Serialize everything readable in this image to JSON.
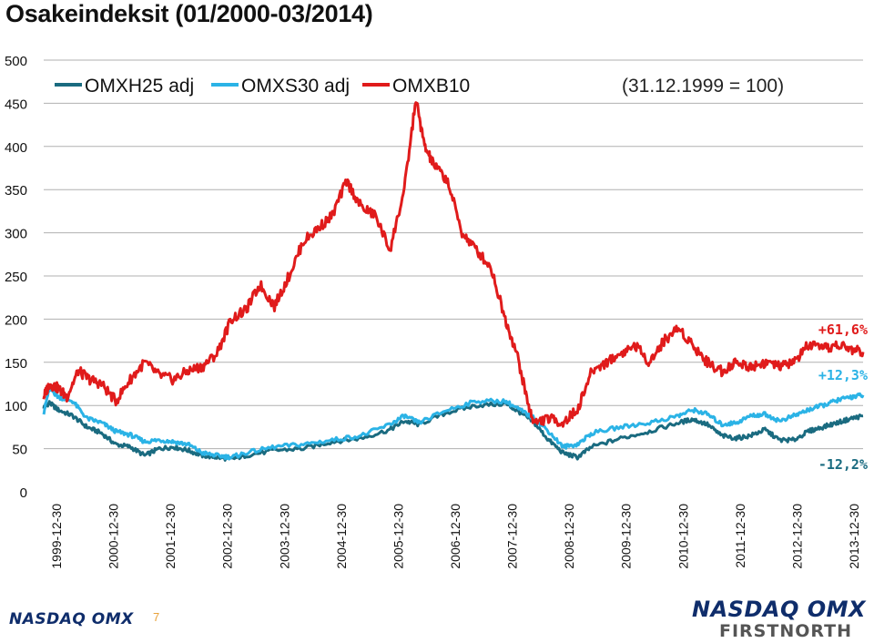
{
  "title": "Osakeindeksit (01/2000-03/2014)",
  "page_number": "7",
  "logos": {
    "left": "NASDAQ OMX",
    "right_top": "NASDAQ OMX",
    "right_bottom": "FIRSTNORTH"
  },
  "colors": {
    "omxh25": "#1a6b80",
    "omxs30": "#2bb3e6",
    "omxb10": "#e01b1b",
    "grid": "#b0b0b0",
    "logo_navy": "#0f2d6b"
  },
  "chart_data": {
    "type": "line",
    "title": "Osakeindeksit (01/2000-03/2014)",
    "subtitle": "(31.12.1999 = 100)",
    "xlabel": "",
    "ylabel": "",
    "ylim": [
      0,
      500
    ],
    "yticks": [
      "0",
      "50",
      "100",
      "150",
      "200",
      "250",
      "300",
      "350",
      "400",
      "450",
      "500"
    ],
    "xticks": [
      "1999-12-30",
      "2000-12-30",
      "2001-12-30",
      "2002-12-30",
      "2003-12-30",
      "2004-12-30",
      "2005-12-30",
      "2006-12-30",
      "2007-12-30",
      "2008-12-30",
      "2009-12-30",
      "2010-12-30",
      "2011-12-30",
      "2012-12-30",
      "2013-12-30"
    ],
    "grid": true,
    "legend_position": "top-left",
    "series": [
      {
        "name": "OMXH25 adj",
        "color": "#1a6b80",
        "x": [
          2000.0,
          2000.1,
          2000.25,
          2000.5,
          2000.75,
          2001.0,
          2001.25,
          2001.5,
          2001.75,
          2002.0,
          2002.25,
          2002.5,
          2002.75,
          2003.0,
          2003.25,
          2003.5,
          2004.0,
          2004.5,
          2005.0,
          2005.5,
          2006.0,
          2006.25,
          2006.5,
          2007.0,
          2007.5,
          2008.0,
          2008.25,
          2008.5,
          2008.75,
          2009.0,
          2009.25,
          2009.5,
          2010.0,
          2010.5,
          2011.0,
          2011.25,
          2011.5,
          2011.75,
          2012.0,
          2012.25,
          2012.5,
          2012.75,
          2013.0,
          2013.25,
          2013.5,
          2013.75,
          2014.0,
          2014.2
        ],
        "y": [
          98,
          103,
          95,
          88,
          75,
          68,
          55,
          52,
          42,
          50,
          52,
          48,
          42,
          40,
          38,
          42,
          48,
          50,
          58,
          62,
          72,
          82,
          78,
          92,
          100,
          102,
          92,
          80,
          60,
          45,
          40,
          52,
          62,
          70,
          80,
          84,
          78,
          65,
          62,
          65,
          72,
          60,
          60,
          70,
          75,
          80,
          85,
          88
        ]
      },
      {
        "name": "OMXS30 adj",
        "color": "#2bb3e6",
        "x": [
          2000.0,
          2000.1,
          2000.25,
          2000.5,
          2000.75,
          2001.0,
          2001.25,
          2001.5,
          2001.75,
          2002.0,
          2002.25,
          2002.5,
          2002.75,
          2003.0,
          2003.25,
          2003.5,
          2004.0,
          2004.5,
          2005.0,
          2005.5,
          2006.0,
          2006.25,
          2006.5,
          2007.0,
          2007.5,
          2008.0,
          2008.25,
          2008.5,
          2008.75,
          2009.0,
          2009.25,
          2009.5,
          2010.0,
          2010.5,
          2011.0,
          2011.25,
          2011.5,
          2011.75,
          2012.0,
          2012.25,
          2012.5,
          2012.75,
          2013.0,
          2013.25,
          2013.5,
          2013.75,
          2014.0,
          2014.2
        ],
        "y": [
          92,
          120,
          110,
          105,
          85,
          80,
          70,
          66,
          58,
          60,
          58,
          55,
          45,
          42,
          40,
          45,
          52,
          55,
          60,
          65,
          78,
          88,
          80,
          95,
          105,
          105,
          95,
          85,
          70,
          52,
          55,
          68,
          75,
          80,
          88,
          95,
          90,
          78,
          80,
          88,
          90,
          82,
          88,
          95,
          100,
          106,
          110,
          112
        ]
      },
      {
        "name": "OMXB10",
        "color": "#e01b1b",
        "x": [
          2000.0,
          2000.1,
          2000.25,
          2000.4,
          2000.6,
          2000.8,
          2001.0,
          2001.25,
          2001.5,
          2001.75,
          2002.0,
          2002.25,
          2002.5,
          2002.75,
          2003.0,
          2003.25,
          2003.5,
          2003.75,
          2004.0,
          2004.25,
          2004.5,
          2004.75,
          2005.0,
          2005.25,
          2005.5,
          2005.75,
          2006.0,
          2006.25,
          2006.45,
          2006.6,
          2006.75,
          2007.0,
          2007.25,
          2007.5,
          2007.75,
          2008.0,
          2008.2,
          2008.4,
          2008.5,
          2008.75,
          2009.0,
          2009.25,
          2009.5,
          2009.75,
          2010.0,
          2010.25,
          2010.5,
          2010.75,
          2011.0,
          2011.25,
          2011.5,
          2011.75,
          2012.0,
          2012.25,
          2012.5,
          2012.75,
          2013.0,
          2013.25,
          2013.5,
          2013.75,
          2014.0,
          2014.2
        ],
        "y": [
          110,
          125,
          120,
          110,
          140,
          130,
          125,
          105,
          130,
          150,
          135,
          130,
          140,
          145,
          160,
          200,
          210,
          240,
          215,
          250,
          290,
          305,
          320,
          360,
          330,
          320,
          280,
          350,
          455,
          400,
          380,
          360,
          300,
          280,
          260,
          200,
          160,
          100,
          80,
          85,
          80,
          95,
          140,
          150,
          160,
          170,
          150,
          175,
          190,
          170,
          150,
          140,
          150,
          145,
          150,
          145,
          150,
          170,
          165,
          170,
          165,
          162
        ]
      }
    ],
    "annotations": [
      {
        "text": "+61,6%",
        "color": "#e01b1b",
        "series": "OMXB10"
      },
      {
        "text": "+12,3%",
        "color": "#2bb3e6",
        "series": "OMXS30 adj"
      },
      {
        "text": "-12,2%",
        "color": "#1a6b80",
        "series": "OMXH25 adj"
      }
    ]
  }
}
